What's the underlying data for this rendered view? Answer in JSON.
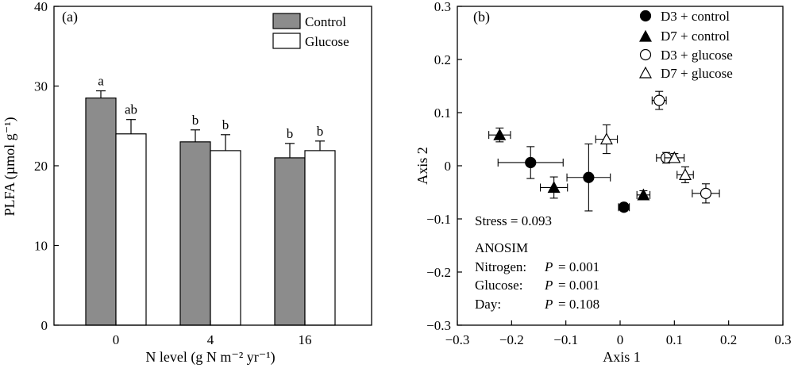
{
  "chart_data": [
    {
      "type": "bar",
      "panel_label": "(a)",
      "categories": [
        "0",
        "4",
        "16"
      ],
      "series": [
        {
          "name": "Control",
          "color": "#8c8c8c",
          "values": [
            28.5,
            23.0,
            21.0
          ],
          "errors": [
            0.9,
            1.5,
            1.8
          ],
          "letters": [
            "a",
            "b",
            "b"
          ]
        },
        {
          "name": "Glucose",
          "color": "#ffffff",
          "values": [
            24.0,
            21.9,
            21.9
          ],
          "errors": [
            1.8,
            2.0,
            1.2
          ],
          "letters": [
            "ab",
            "b",
            "b"
          ]
        }
      ],
      "xlabel": "N level (g N m⁻² yr⁻¹)",
      "ylabel": "PLFA (µmol g⁻¹)",
      "ylim": [
        0,
        40
      ],
      "yticks": [
        "0",
        "10",
        "20",
        "30",
        "40"
      ],
      "legend_position": "top-right",
      "grid": false
    },
    {
      "type": "scatter",
      "panel_label": "(b)",
      "xlabel": "Axis 1",
      "ylabel": "Axis 2",
      "xlim": [
        -0.3,
        0.3
      ],
      "ylim": [
        -0.3,
        0.3
      ],
      "xticks": [
        "−0.3",
        "−0.2",
        "−0.1",
        "0",
        "0.1",
        "0.2",
        "0.3"
      ],
      "yticks": [
        "−0.3",
        "−0.2",
        "−0.1",
        "0",
        "0.1",
        "0.2",
        "0.3"
      ],
      "legend_position": "top-right",
      "grid": false,
      "series": [
        {
          "name": "D3 + control",
          "marker": "circle",
          "filled": true,
          "points": [
            {
              "x": -0.165,
              "y": 0.006,
              "xerr": 0.06,
              "yerr": 0.03
            },
            {
              "x": -0.058,
              "y": -0.022,
              "xerr": 0.04,
              "yerr": 0.063
            },
            {
              "x": 0.007,
              "y": -0.078,
              "xerr": 0.01,
              "yerr": 0.007
            }
          ]
        },
        {
          "name": "D7 + control",
          "marker": "triangle",
          "filled": true,
          "points": [
            {
              "x": -0.222,
              "y": 0.058,
              "xerr": 0.02,
              "yerr": 0.013
            },
            {
              "x": -0.122,
              "y": -0.041,
              "xerr": 0.025,
              "yerr": 0.02
            },
            {
              "x": 0.043,
              "y": -0.055,
              "xerr": 0.012,
              "yerr": 0.008
            }
          ]
        },
        {
          "name": "D3 + glucose",
          "marker": "circle",
          "filled": false,
          "points": [
            {
              "x": 0.072,
              "y": 0.123,
              "xerr": 0.013,
              "yerr": 0.017
            },
            {
              "x": 0.085,
              "y": 0.015,
              "xerr": 0.018,
              "yerr": 0.01
            },
            {
              "x": 0.158,
              "y": -0.052,
              "xerr": 0.025,
              "yerr": 0.018
            }
          ]
        },
        {
          "name": "D7 + glucose",
          "marker": "triangle",
          "filled": false,
          "points": [
            {
              "x": -0.025,
              "y": 0.05,
              "xerr": 0.02,
              "yerr": 0.027
            },
            {
              "x": 0.1,
              "y": 0.015,
              "xerr": 0.018,
              "yerr": 0.008
            },
            {
              "x": 0.12,
              "y": -0.017,
              "xerr": 0.015,
              "yerr": 0.015
            }
          ]
        }
      ],
      "annotations": {
        "stress": "Stress = 0.093",
        "anosim_title": "ANOSIM",
        "rows": [
          {
            "label": "Nitrogen:",
            "p_symbol": "P",
            "value": "= 0.001"
          },
          {
            "label": "Glucose:",
            "p_symbol": "P",
            "value": "= 0.001"
          },
          {
            "label": "Day:",
            "p_symbol": "P",
            "value": "= 0.108"
          }
        ]
      }
    }
  ]
}
